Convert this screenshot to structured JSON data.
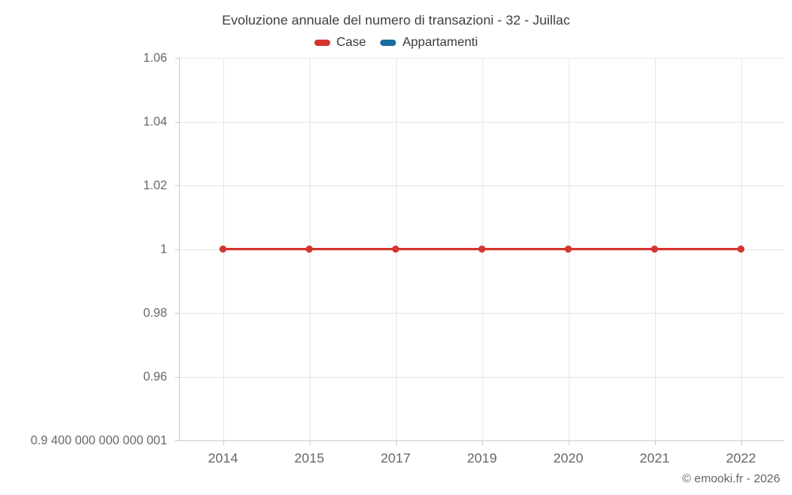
{
  "title": "Evoluzione annuale del numero di transazioni - 32 - Juillac",
  "legend": [
    {
      "label": "Case",
      "color": "#d43530"
    },
    {
      "label": "Appartamenti",
      "color": "#1a6d9c"
    }
  ],
  "footer": {
    "copyright": "© emooki.fr - 2026"
  },
  "chart_data": {
    "type": "line",
    "title": "Evoluzione annuale del numero di transazioni - 32 - Juillac",
    "categories": [
      "2014",
      "2015",
      "2017",
      "2019",
      "2020",
      "2021",
      "2022"
    ],
    "series": [
      {
        "name": "Case",
        "color": "#d43530",
        "values": [
          1,
          1,
          1,
          1,
          1,
          1,
          1
        ]
      },
      {
        "name": "Appartamenti",
        "color": "#1a6d9c",
        "values": []
      }
    ],
    "ylim": [
      0.94,
      1.06
    ],
    "y_ticks": [
      {
        "value": 1.06,
        "label": "1.06"
      },
      {
        "value": 1.04,
        "label": "1.04"
      },
      {
        "value": 1.02,
        "label": "1.02"
      },
      {
        "value": 1.0,
        "label": "1"
      },
      {
        "value": 0.98,
        "label": "0.98"
      },
      {
        "value": 0.96,
        "label": "0.96"
      },
      {
        "value": 0.94,
        "label": "0.9 400 000 000 000 001"
      }
    ],
    "grid": true,
    "legend_position": "top",
    "marker": {
      "shape": "circle",
      "radius": 4.5
    },
    "colors": {
      "grid": "#e7e7e7",
      "axis": "#cccccc",
      "tick_label": "#666666"
    }
  }
}
